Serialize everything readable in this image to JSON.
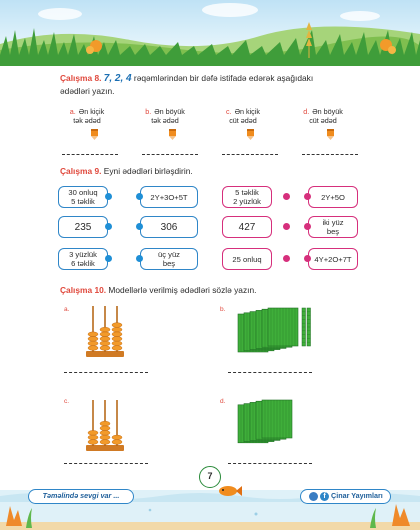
{
  "ex8": {
    "number": "Çalışma 8.",
    "digits": "7, 2, 4",
    "text_line1": "rəqəmlərindən bir dəfə istifadə edərək aşağıdakı",
    "text_line2": "ədədləri yazın.",
    "choices": [
      {
        "letter": "a.",
        "line1": "Ən kiçik",
        "line2": "tək ədəd"
      },
      {
        "letter": "b.",
        "line1": "Ən böyük",
        "line2": "tək ədəd"
      },
      {
        "letter": "c.",
        "line1": "Ən kiçik",
        "line2": "cüt ədəd"
      },
      {
        "letter": "d.",
        "line1": "Ən böyük",
        "line2": "cüt ədəd"
      }
    ]
  },
  "ex9": {
    "number": "Çalışma 9.",
    "text": "Eyni ədədləri birləşdirin.",
    "rows": [
      [
        "30 onluq\n5 təklik",
        "2Y+3O+5T",
        "5 təklik\n2 yüzlük",
        "2Y+5O"
      ],
      [
        "235",
        "306",
        "427",
        "iki yüz\nbeş"
      ],
      [
        "3 yüzlük\n6 təklik",
        "üç yüz\nbeş",
        "25 onluq",
        "4Y+2O+7T"
      ]
    ]
  },
  "ex10": {
    "number": "Çalışma 10.",
    "text": "Modellərlə verilmiş ədədləri sözlə yazın.",
    "figures": [
      {
        "letter": "a.",
        "kind": "abacus",
        "beads": [
          4,
          5,
          6
        ]
      },
      {
        "letter": "b.",
        "kind": "blocks",
        "hundreds": 6,
        "tens": 2
      },
      {
        "letter": "c.",
        "kind": "abacus",
        "beads": [
          3,
          5,
          2
        ]
      },
      {
        "letter": "d.",
        "kind": "blocks",
        "hundreds": 5,
        "tens": 0
      }
    ]
  },
  "page_number": "7",
  "footer": {
    "left": "Təməlində sevgi var ...",
    "right": "Çinar Yayımları"
  },
  "colors": {
    "accent_red": "#e0483c",
    "blue": "#2f86c8",
    "pink": "#d62f7c",
    "green": "#3fae3a",
    "orange": "#f08c1e"
  },
  "icons": [
    "pencil-icon",
    "fish-icon",
    "instagram-icon",
    "facebook-icon"
  ]
}
